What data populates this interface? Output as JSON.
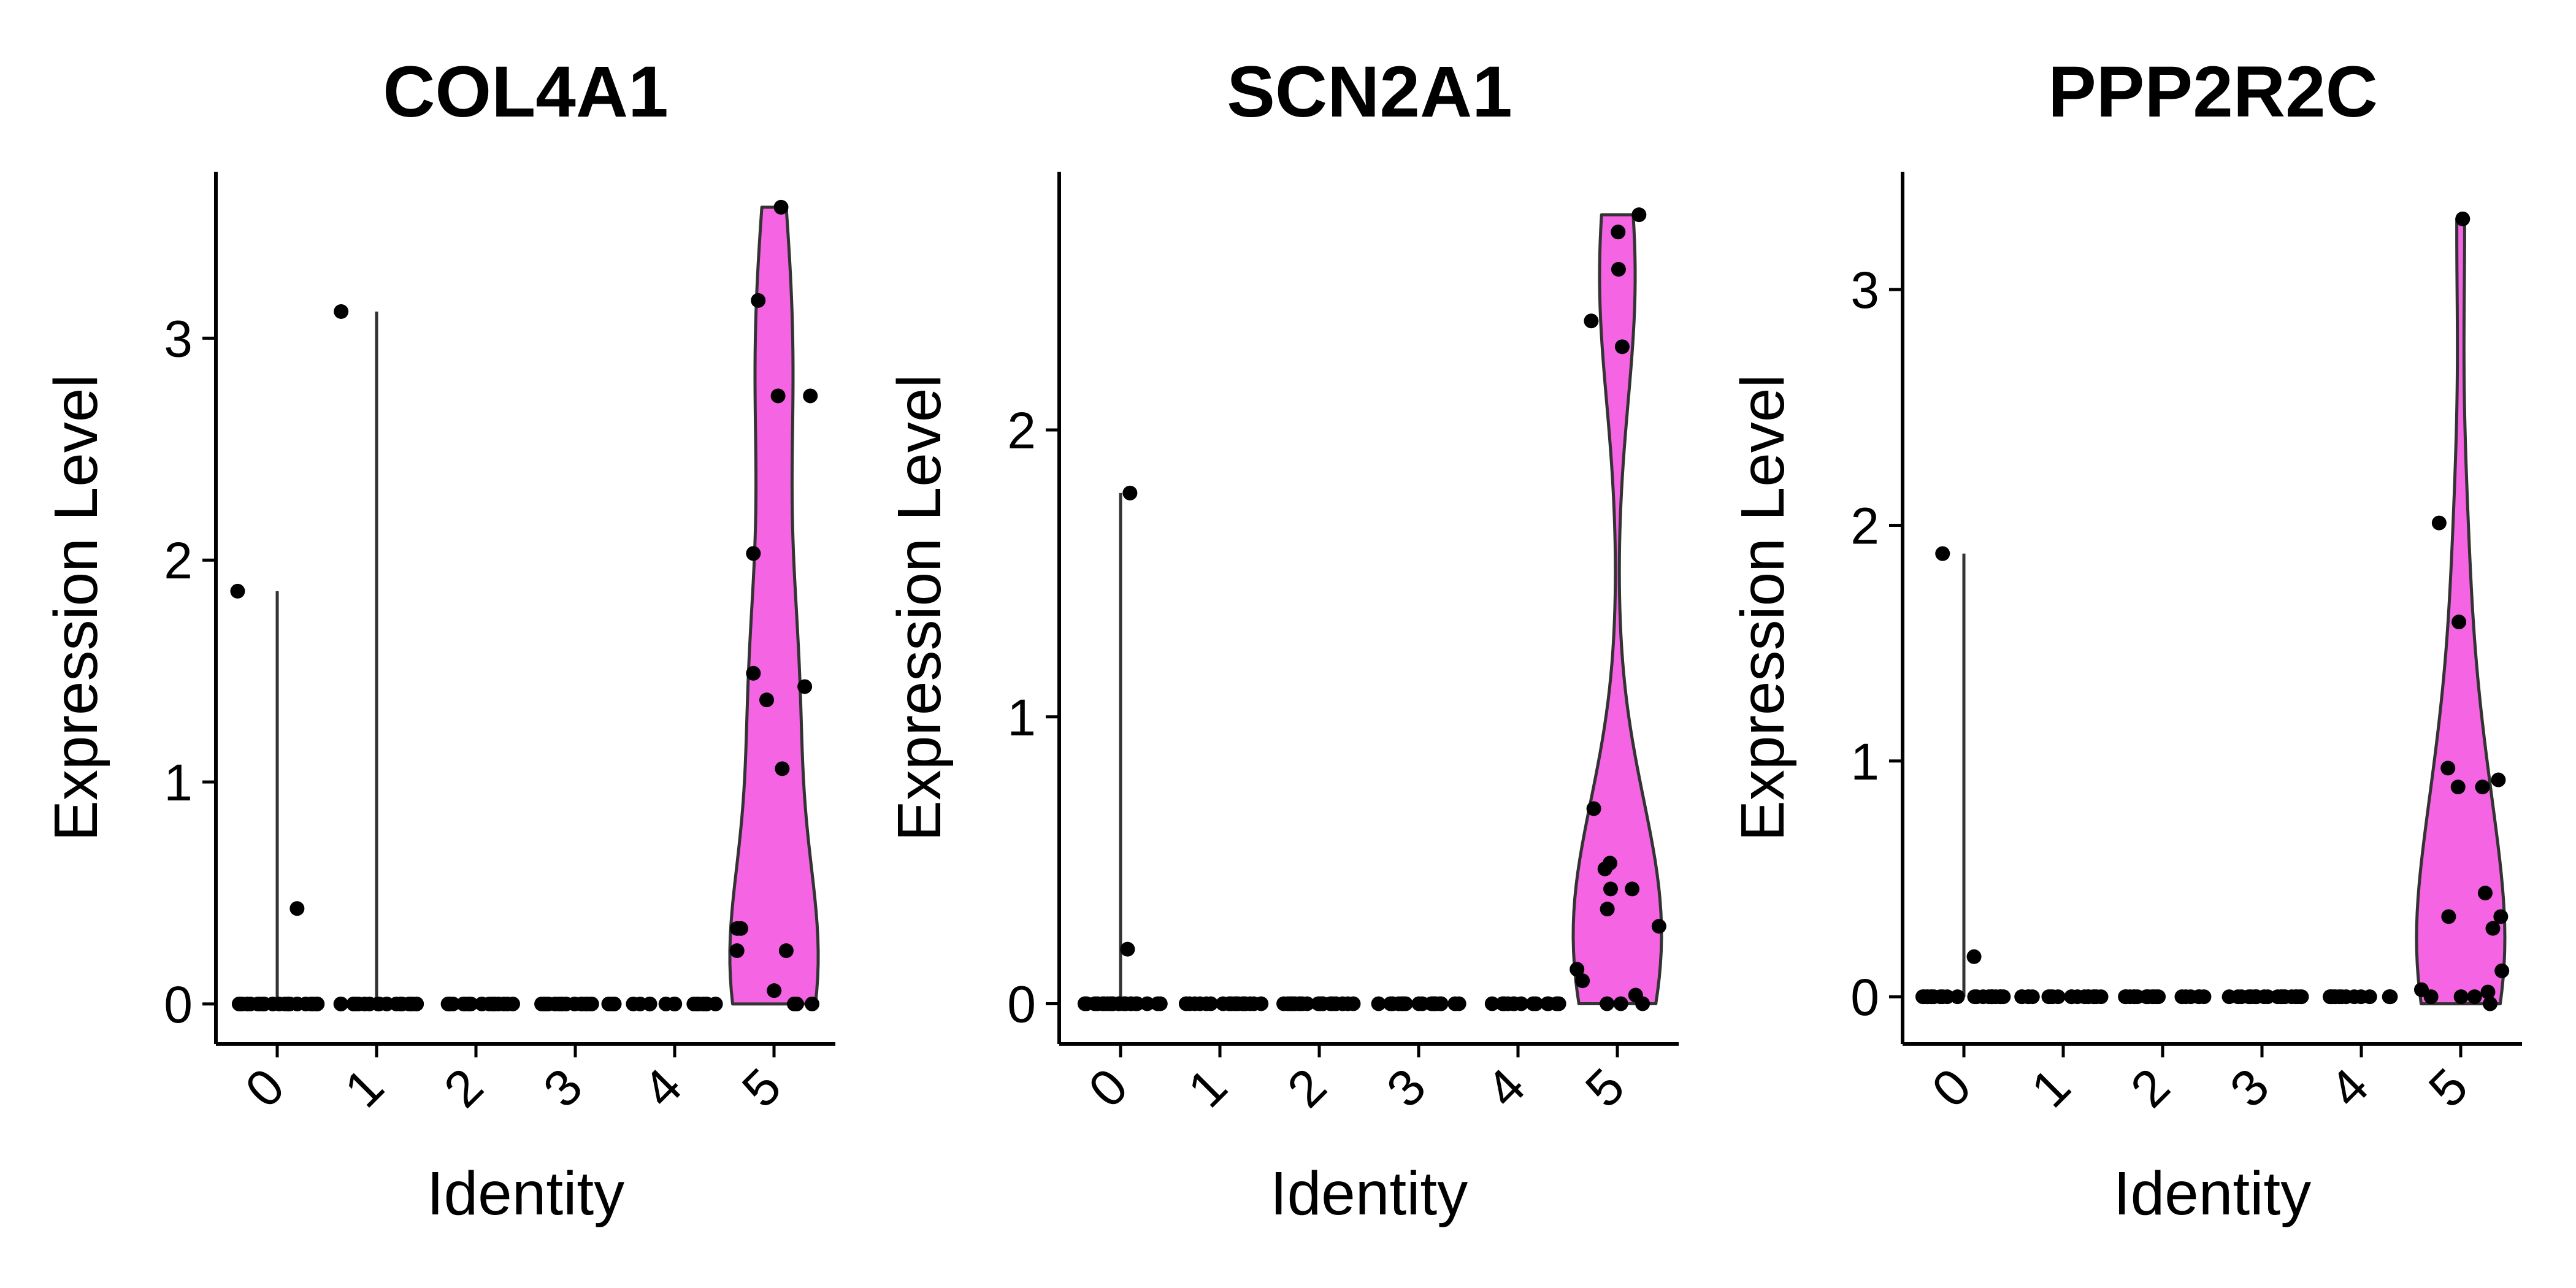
{
  "chart_data": [
    {
      "type": "violin",
      "title": "COL4A1",
      "xlabel": "Identity",
      "ylabel": "Expression Level",
      "categories": [
        "0",
        "1",
        "2",
        "3",
        "4",
        "5"
      ],
      "ylim": [
        -0.18,
        3.75
      ],
      "yticks": [
        0,
        1,
        2,
        3
      ],
      "y_tick_labels": [
        "0",
        "1",
        "2",
        "3"
      ],
      "violin_color": "#F564E3",
      "points": {
        "0": [
          0,
          0,
          0,
          0,
          0,
          0,
          0,
          0,
          0,
          0,
          0,
          0,
          0,
          0,
          0,
          0,
          0,
          0,
          0,
          0,
          0,
          0,
          0,
          0,
          0,
          0,
          0.43,
          1.86
        ],
        "1": [
          0,
          0,
          0,
          0,
          0,
          0,
          0,
          0,
          0,
          0,
          0,
          0,
          0,
          0,
          0,
          0,
          0,
          0,
          0,
          0,
          3.12
        ],
        "2": [
          0,
          0,
          0,
          0,
          0,
          0,
          0,
          0,
          0,
          0,
          0,
          0,
          0,
          0,
          0,
          0,
          0,
          0,
          0,
          0
        ],
        "3": [
          0,
          0,
          0,
          0,
          0,
          0,
          0,
          0,
          0,
          0,
          0,
          0,
          0,
          0,
          0,
          0,
          0,
          0,
          0,
          0
        ],
        "4": [
          0,
          0,
          0,
          0,
          0,
          0,
          0,
          0,
          0,
          0,
          0,
          0,
          0,
          0
        ],
        "5": [
          3.59,
          3.17,
          2.74,
          2.74,
          2.03,
          1.49,
          1.43,
          1.37,
          1.06,
          0.34,
          0.34,
          0.24,
          0.24,
          0.06,
          0,
          0,
          0
        ]
      }
    },
    {
      "type": "violin",
      "title": "SCN2A1",
      "xlabel": "Identity",
      "ylabel": "Expression Level",
      "categories": [
        "0",
        "1",
        "2",
        "3",
        "4",
        "5"
      ],
      "ylim": [
        -0.14,
        2.9
      ],
      "yticks": [
        0,
        1,
        2
      ],
      "y_tick_labels": [
        "0",
        "1",
        "2"
      ],
      "violin_color": "#F564E3",
      "points": {
        "0": [
          0,
          0,
          0,
          0,
          0,
          0,
          0,
          0,
          0,
          0,
          0,
          0,
          0,
          0,
          0,
          0,
          0,
          0,
          0,
          0,
          0,
          0,
          0,
          0,
          0.19,
          1.78
        ],
        "1": [
          0,
          0,
          0,
          0,
          0,
          0,
          0,
          0,
          0,
          0,
          0,
          0,
          0,
          0,
          0,
          0,
          0,
          0,
          0,
          0
        ],
        "2": [
          0,
          0,
          0,
          0,
          0,
          0,
          0,
          0,
          0,
          0,
          0,
          0,
          0,
          0,
          0,
          0,
          0,
          0,
          0,
          0
        ],
        "3": [
          0,
          0,
          0,
          0,
          0,
          0,
          0,
          0,
          0,
          0,
          0,
          0,
          0,
          0,
          0,
          0,
          0,
          0,
          0,
          0
        ],
        "4": [
          0,
          0,
          0,
          0,
          0,
          0,
          0,
          0,
          0,
          0,
          0,
          0,
          0,
          0
        ],
        "5": [
          2.75,
          2.69,
          2.56,
          2.38,
          2.29,
          0.68,
          0.49,
          0.47,
          0.4,
          0.4,
          0.33,
          0.27,
          0.12,
          0.08,
          0.03,
          0,
          0,
          0
        ]
      }
    },
    {
      "type": "violin",
      "title": "PPP2R2C",
      "xlabel": "Identity",
      "ylabel": "Expression Level",
      "categories": [
        "0",
        "1",
        "2",
        "3",
        "4",
        "5"
      ],
      "ylim": [
        -0.2,
        3.5
      ],
      "yticks": [
        0,
        1,
        2,
        3
      ],
      "y_tick_labels": [
        "0",
        "1",
        "2",
        "3"
      ],
      "violin_color": "#F564E3",
      "points": {
        "0": [
          0,
          0,
          0,
          0,
          0,
          0,
          0,
          0,
          0,
          0,
          0,
          0,
          0,
          0,
          0,
          0,
          0,
          0,
          0,
          0,
          0,
          0,
          0,
          0,
          1.88,
          0.17
        ],
        "1": [
          0,
          0,
          0,
          0,
          0,
          0,
          0,
          0,
          0,
          0,
          0,
          0,
          0,
          0,
          0,
          0,
          0,
          0,
          0,
          0
        ],
        "2": [
          0,
          0,
          0,
          0,
          0,
          0,
          0,
          0,
          0,
          0,
          0,
          0,
          0,
          0,
          0,
          0,
          0,
          0,
          0,
          0
        ],
        "3": [
          0,
          0,
          0,
          0,
          0,
          0,
          0,
          0,
          0,
          0,
          0,
          0,
          0,
          0,
          0,
          0,
          0,
          0,
          0,
          0
        ],
        "4": [
          0,
          0,
          0,
          0,
          0,
          0,
          0,
          0,
          0,
          0,
          0,
          0,
          0,
          0
        ],
        "5": [
          3.3,
          2.01,
          1.59,
          0.97,
          0.92,
          0.89,
          0.89,
          0.44,
          0.34,
          0.34,
          0.29,
          0.11,
          0.03,
          0.02,
          0,
          0,
          0,
          -0.03
        ]
      }
    }
  ]
}
